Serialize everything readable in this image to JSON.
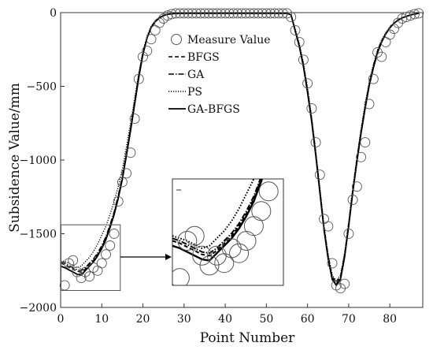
{
  "chart_data": {
    "type": "line",
    "title": "",
    "xlabel": "Point Number",
    "ylabel": "Subsidence Value/mm",
    "xlim": [
      0,
      88
    ],
    "ylim": [
      -2000,
      0
    ],
    "x_ticks": [
      0,
      10,
      20,
      30,
      40,
      50,
      60,
      70,
      80
    ],
    "y_ticks": [
      0,
      -500,
      -1000,
      -1500,
      -2000
    ],
    "x_tick_labels": [
      "0",
      "10",
      "20",
      "30",
      "40",
      "50",
      "60",
      "70",
      "80"
    ],
    "y_tick_labels": [
      "0",
      "−500",
      "−1000",
      "−1500",
      "−2000"
    ],
    "grid": false,
    "legend_position": "top-left",
    "legend": [
      {
        "label": "Measure Value",
        "style": "circle-marker"
      },
      {
        "label": "BFGS",
        "style": "dashed"
      },
      {
        "label": "GA",
        "style": "dash-dot"
      },
      {
        "label": "PS",
        "style": "dotted"
      },
      {
        "label": "GA-BFGS",
        "style": "solid"
      }
    ],
    "measured": {
      "name": "Measure Value",
      "x": [
        1,
        2,
        3,
        4,
        5,
        6,
        7,
        8,
        9,
        10,
        11,
        12,
        13,
        14,
        15,
        16,
        17,
        18,
        19,
        20,
        21,
        22,
        23,
        24,
        25,
        26,
        27,
        28,
        29,
        30,
        31,
        32,
        33,
        34,
        35,
        36,
        37,
        38,
        39,
        40,
        41,
        42,
        43,
        44,
        45,
        46,
        47,
        48,
        49,
        50,
        51,
        52,
        53,
        54,
        55,
        56,
        57,
        58,
        59,
        60,
        61,
        62,
        63,
        64,
        65,
        66,
        67,
        68,
        69,
        70,
        71,
        72,
        73,
        74,
        75,
        76,
        77,
        78,
        79,
        80,
        81,
        82,
        83,
        84,
        85,
        86,
        87
      ],
      "y": [
        -1850,
        -1700,
        -1680,
        -1760,
        -1800,
        -1760,
        -1790,
        -1730,
        -1750,
        -1700,
        -1640,
        -1580,
        -1500,
        -1280,
        -1150,
        -1090,
        -950,
        -720,
        -450,
        -300,
        -260,
        -180,
        -120,
        -70,
        -40,
        -20,
        -10,
        -5,
        -5,
        -5,
        -5,
        -5,
        -5,
        -5,
        -5,
        -5,
        -5,
        -5,
        -5,
        -5,
        -5,
        -5,
        -5,
        -5,
        -5,
        -5,
        -5,
        -5,
        -5,
        -5,
        -5,
        -5,
        -5,
        -5,
        -5,
        -30,
        -120,
        -200,
        -320,
        -480,
        -650,
        -880,
        -1100,
        -1400,
        -1450,
        -1700,
        -1850,
        -1870,
        -1840,
        -1500,
        -1270,
        -1180,
        -980,
        -880,
        -620,
        -450,
        -270,
        -300,
        -200,
        -150,
        -110,
        -70,
        -40,
        -30,
        -20,
        -10,
        -5
      ]
    },
    "series": [
      {
        "name": "BFGS",
        "style": "dashed",
        "x": [
          0,
          1,
          2,
          3,
          4,
          5,
          6,
          7,
          8,
          9,
          10,
          11,
          12,
          13,
          14,
          15,
          16,
          17,
          18,
          19,
          20,
          21,
          22,
          23,
          24,
          25,
          26,
          27,
          28,
          30,
          35,
          40,
          45,
          50,
          55,
          56,
          57,
          58,
          59,
          60,
          61,
          62,
          63,
          64,
          65,
          66,
          67,
          68,
          69,
          70,
          71,
          72,
          73,
          74,
          75,
          76,
          77,
          78,
          79,
          80,
          81,
          82,
          83,
          84,
          85,
          86,
          87
        ],
        "y": [
          -1700,
          -1710,
          -1725,
          -1740,
          -1755,
          -1760,
          -1740,
          -1710,
          -1680,
          -1640,
          -1590,
          -1530,
          -1450,
          -1360,
          -1250,
          -1120,
          -960,
          -790,
          -610,
          -430,
          -280,
          -170,
          -100,
          -60,
          -35,
          -20,
          -12,
          -8,
          -6,
          -5,
          -5,
          -5,
          -5,
          -5,
          -5,
          -15,
          -120,
          -220,
          -350,
          -520,
          -720,
          -950,
          -1200,
          -1450,
          -1650,
          -1790,
          -1830,
          -1790,
          -1640,
          -1430,
          -1200,
          -990,
          -800,
          -630,
          -480,
          -360,
          -260,
          -190,
          -140,
          -100,
          -70,
          -50,
          -35,
          -25,
          -15,
          -10,
          -5
        ]
      },
      {
        "name": "GA",
        "style": "dash-dot",
        "x": [
          0,
          1,
          2,
          3,
          4,
          5,
          6,
          7,
          8,
          9,
          10,
          11,
          12,
          13,
          14,
          15,
          16,
          17,
          18,
          19,
          20,
          21,
          22,
          23,
          24,
          25,
          26,
          27,
          28,
          30,
          35,
          40,
          45,
          50,
          55,
          56,
          57,
          58,
          59,
          60,
          61,
          62,
          63,
          64,
          65,
          66,
          67,
          68,
          69,
          70,
          71,
          72,
          73,
          74,
          75,
          76,
          77,
          78,
          79,
          80,
          81,
          82,
          83,
          84,
          85,
          86,
          87
        ],
        "y": [
          -1690,
          -1700,
          -1715,
          -1730,
          -1745,
          -1750,
          -1730,
          -1700,
          -1670,
          -1630,
          -1580,
          -1520,
          -1440,
          -1350,
          -1240,
          -1110,
          -950,
          -780,
          -600,
          -420,
          -270,
          -165,
          -95,
          -58,
          -33,
          -19,
          -11,
          -7,
          -5,
          -5,
          -5,
          -5,
          -5,
          -5,
          -5,
          -15,
          -120,
          -230,
          -360,
          -530,
          -730,
          -960,
          -1210,
          -1460,
          -1660,
          -1800,
          -1840,
          -1800,
          -1650,
          -1440,
          -1210,
          -1000,
          -810,
          -640,
          -490,
          -370,
          -270,
          -200,
          -145,
          -105,
          -72,
          -52,
          -36,
          -26,
          -16,
          -10,
          -5
        ]
      },
      {
        "name": "PS",
        "style": "dotted",
        "x": [
          0,
          1,
          2,
          3,
          4,
          5,
          6,
          7,
          8,
          9,
          10,
          11,
          12,
          13,
          14,
          15,
          16,
          17,
          18,
          19,
          20,
          21,
          22,
          23,
          24,
          25,
          26,
          27,
          28,
          30,
          35,
          40,
          45,
          50,
          55,
          56,
          57,
          58,
          59,
          60,
          61,
          62,
          63,
          64,
          65,
          66,
          67,
          68,
          69,
          70,
          71,
          72,
          73,
          74,
          75,
          76,
          77,
          78,
          79,
          80,
          81,
          82,
          83,
          84,
          85,
          86,
          87
        ],
        "y": [
          -1680,
          -1690,
          -1700,
          -1715,
          -1730,
          -1720,
          -1690,
          -1660,
          -1620,
          -1570,
          -1510,
          -1450,
          -1370,
          -1280,
          -1180,
          -1060,
          -910,
          -750,
          -580,
          -410,
          -265,
          -160,
          -92,
          -55,
          -31,
          -18,
          -10,
          -6,
          -5,
          -5,
          -5,
          -5,
          -5,
          -5,
          -5,
          -15,
          -110,
          -210,
          -340,
          -510,
          -710,
          -940,
          -1190,
          -1440,
          -1640,
          -1780,
          -1820,
          -1780,
          -1630,
          -1420,
          -1190,
          -980,
          -790,
          -620,
          -470,
          -350,
          -255,
          -185,
          -135,
          -98,
          -68,
          -48,
          -34,
          -24,
          -15,
          -9,
          -5
        ]
      },
      {
        "name": "GA-BFGS",
        "style": "solid",
        "x": [
          0,
          1,
          2,
          3,
          4,
          5,
          6,
          7,
          8,
          9,
          10,
          11,
          12,
          13,
          14,
          15,
          16,
          17,
          18,
          19,
          20,
          21,
          22,
          23,
          24,
          25,
          26,
          27,
          28,
          30,
          35,
          40,
          45,
          50,
          55,
          56,
          57,
          58,
          59,
          60,
          61,
          62,
          63,
          64,
          65,
          66,
          67,
          68,
          69,
          70,
          71,
          72,
          73,
          74,
          75,
          76,
          77,
          78,
          79,
          80,
          81,
          82,
          83,
          84,
          85,
          86,
          87
        ],
        "y": [
          -1720,
          -1730,
          -1745,
          -1760,
          -1775,
          -1780,
          -1750,
          -1720,
          -1690,
          -1650,
          -1600,
          -1540,
          -1460,
          -1370,
          -1260,
          -1130,
          -970,
          -800,
          -620,
          -440,
          -285,
          -172,
          -102,
          -61,
          -36,
          -21,
          -12,
          -8,
          -6,
          -5,
          -5,
          -5,
          -5,
          -5,
          -5,
          -15,
          -125,
          -230,
          -365,
          -540,
          -740,
          -970,
          -1220,
          -1470,
          -1670,
          -1810,
          -1850,
          -1810,
          -1660,
          -1450,
          -1220,
          -1010,
          -820,
          -650,
          -495,
          -375,
          -272,
          -200,
          -145,
          -103,
          -72,
          -52,
          -36,
          -26,
          -16,
          -10,
          -5
        ]
      }
    ],
    "zoom_region": {
      "xlim": [
        0,
        15
      ],
      "ylim": [
        -1880,
        -1450
      ]
    }
  }
}
